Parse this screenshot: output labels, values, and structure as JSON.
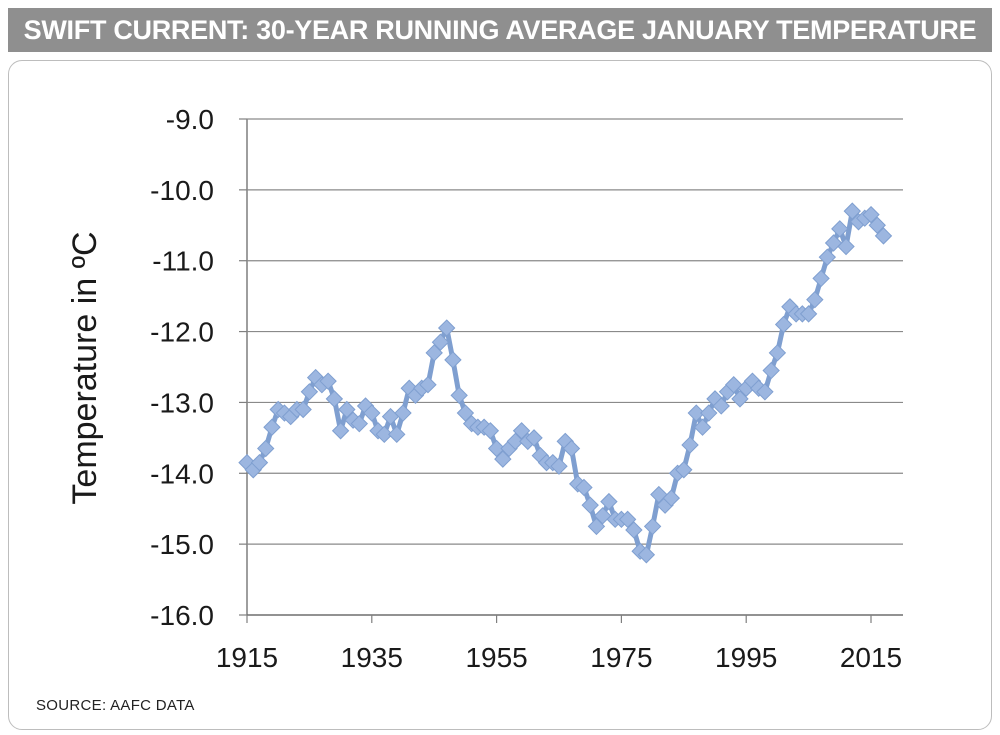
{
  "title": "SWIFT CURRENT: 30-YEAR RUNNING AVERAGE JANUARY TEMPERATURE",
  "source": "SOURCE: AAFC DATA",
  "colors": {
    "title_bg": "#8f8f8f",
    "line": "#7f9fd0",
    "marker": "#9cb6e0",
    "grid": "#7f7f7f"
  },
  "chart_data": {
    "type": "line",
    "title": "SWIFT CURRENT: 30-YEAR RUNNING AVERAGE JANUARY TEMPERATURE",
    "xlabel": "",
    "ylabel": "Temperature in ºC",
    "xlim": [
      1915,
      2020
    ],
    "ylim": [
      -16.0,
      -9.0
    ],
    "x_ticks": [
      "1915",
      "1935",
      "1955",
      "1975",
      "1995",
      "2015"
    ],
    "y_ticks": [
      "-9.0",
      "-10.0",
      "-11.0",
      "-12.0",
      "-13.0",
      "-14.0",
      "-15.0",
      "-16.0"
    ],
    "grid": true,
    "legend": "none",
    "marker": "diamond",
    "x": [
      1915,
      1916,
      1917,
      1918,
      1919,
      1920,
      1921,
      1922,
      1923,
      1924,
      1925,
      1926,
      1927,
      1928,
      1929,
      1930,
      1931,
      1932,
      1933,
      1934,
      1935,
      1936,
      1937,
      1938,
      1939,
      1940,
      1941,
      1942,
      1943,
      1944,
      1945,
      1946,
      1947,
      1948,
      1949,
      1950,
      1951,
      1952,
      1953,
      1954,
      1955,
      1956,
      1957,
      1958,
      1959,
      1960,
      1961,
      1962,
      1963,
      1964,
      1965,
      1966,
      1967,
      1968,
      1969,
      1970,
      1971,
      1972,
      1973,
      1974,
      1975,
      1976,
      1977,
      1978,
      1979,
      1980,
      1981,
      1982,
      1983,
      1984,
      1985,
      1986,
      1987,
      1988,
      1989,
      1990,
      1991,
      1992,
      1993,
      1994,
      1995,
      1996,
      1997,
      1998,
      1999,
      2000,
      2001,
      2002,
      2003,
      2004,
      2005,
      2006,
      2007,
      2008,
      2009,
      2010,
      2011,
      2012,
      2013,
      2014,
      2015,
      2016,
      2017
    ],
    "values": [
      -13.85,
      -13.95,
      -13.85,
      -13.65,
      -13.35,
      -13.1,
      -13.15,
      -13.2,
      -13.1,
      -13.1,
      -12.85,
      -12.65,
      -12.75,
      -12.7,
      -12.95,
      -13.4,
      -13.1,
      -13.25,
      -13.3,
      -13.05,
      -13.15,
      -13.4,
      -13.45,
      -13.2,
      -13.45,
      -13.15,
      -12.8,
      -12.9,
      -12.8,
      -12.75,
      -12.3,
      -12.15,
      -11.95,
      -12.4,
      -12.9,
      -13.15,
      -13.3,
      -13.35,
      -13.35,
      -13.4,
      -13.65,
      -13.8,
      -13.65,
      -13.55,
      -13.4,
      -13.55,
      -13.5,
      -13.75,
      -13.85,
      -13.85,
      -13.9,
      -13.55,
      -13.65,
      -14.15,
      -14.2,
      -14.45,
      -14.75,
      -14.6,
      -14.4,
      -14.65,
      -14.65,
      -14.65,
      -14.8,
      -15.1,
      -15.15,
      -14.75,
      -14.3,
      -14.45,
      -14.35,
      -14.0,
      -13.95,
      -13.6,
      -13.15,
      -13.35,
      -13.15,
      -12.95,
      -13.05,
      -12.85,
      -12.75,
      -12.95,
      -12.8,
      -12.7,
      -12.8,
      -12.85,
      -12.55,
      -12.3,
      -11.9,
      -11.65,
      -11.75,
      -11.75,
      -11.75,
      -11.55,
      -11.25,
      -10.95,
      -10.75,
      -10.55,
      -10.8,
      -10.3,
      -10.45,
      -10.4,
      -10.35,
      -10.5,
      -10.65
    ]
  }
}
